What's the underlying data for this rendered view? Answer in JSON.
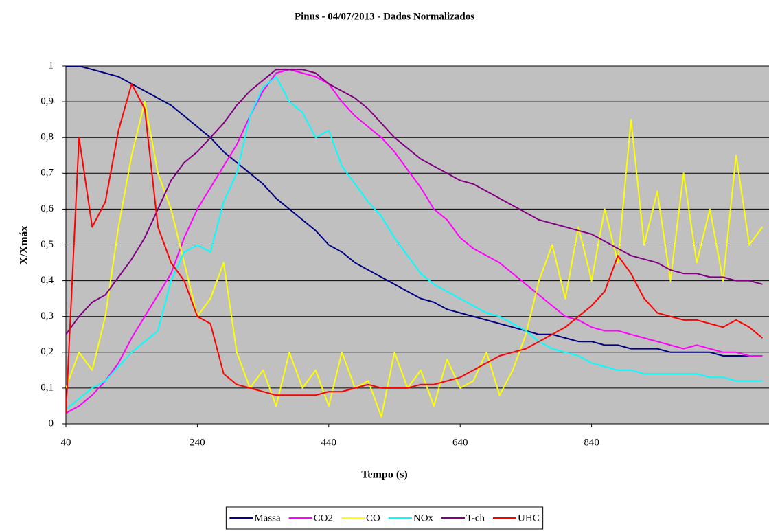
{
  "chart_data": {
    "type": "line",
    "title": "Pinus  -  04/07/2013 - Dados Normalizados",
    "x_label": "Tempo  (s)",
    "y_label": "X/Xmáx",
    "x": [
      40,
      60,
      80,
      100,
      120,
      140,
      160,
      180,
      200,
      220,
      240,
      260,
      280,
      300,
      320,
      340,
      360,
      380,
      400,
      420,
      440,
      460,
      480,
      500,
      520,
      540,
      560,
      580,
      600,
      620,
      640,
      660,
      680,
      700,
      720,
      740,
      760,
      780,
      800,
      820,
      840,
      860,
      880,
      900,
      920,
      940,
      960,
      980,
      1000,
      1020,
      1040,
      1060,
      1080,
      1100
    ],
    "series": [
      {
        "name": "Massa",
        "color": "#000080",
        "values": [
          1,
          1,
          0.99,
          0.98,
          0.97,
          0.95,
          0.93,
          0.91,
          0.89,
          0.86,
          0.83,
          0.8,
          0.76,
          0.73,
          0.7,
          0.67,
          0.63,
          0.6,
          0.57,
          0.54,
          0.5,
          0.48,
          0.45,
          0.43,
          0.41,
          0.39,
          0.37,
          0.35,
          0.34,
          0.32,
          0.31,
          0.3,
          0.29,
          0.28,
          0.27,
          0.26,
          0.25,
          0.25,
          0.24,
          0.23,
          0.23,
          0.22,
          0.22,
          0.21,
          0.21,
          0.21,
          0.2,
          0.2,
          0.2,
          0.2,
          0.19,
          0.19,
          0.19,
          0.19
        ]
      },
      {
        "name": "CO2",
        "color": "#ff00ff",
        "values": [
          0.03,
          0.05,
          0.08,
          0.12,
          0.17,
          0.24,
          0.3,
          0.36,
          0.42,
          0.52,
          0.6,
          0.66,
          0.72,
          0.78,
          0.86,
          0.93,
          0.98,
          0.99,
          0.98,
          0.97,
          0.95,
          0.9,
          0.86,
          0.83,
          0.8,
          0.76,
          0.71,
          0.66,
          0.6,
          0.57,
          0.52,
          0.49,
          0.47,
          0.45,
          0.42,
          0.39,
          0.36,
          0.33,
          0.3,
          0.29,
          0.27,
          0.26,
          0.26,
          0.25,
          0.24,
          0.23,
          0.22,
          0.21,
          0.22,
          0.21,
          0.2,
          0.2,
          0.19,
          0.19
        ]
      },
      {
        "name": "CO",
        "color": "#ffff00",
        "values": [
          0.1,
          0.2,
          0.15,
          0.3,
          0.55,
          0.75,
          0.9,
          0.7,
          0.6,
          0.45,
          0.3,
          0.35,
          0.45,
          0.2,
          0.1,
          0.15,
          0.05,
          0.2,
          0.1,
          0.15,
          0.05,
          0.2,
          0.1,
          0.12,
          0.02,
          0.2,
          0.1,
          0.15,
          0.05,
          0.18,
          0.1,
          0.12,
          0.2,
          0.08,
          0.15,
          0.25,
          0.4,
          0.5,
          0.35,
          0.55,
          0.4,
          0.6,
          0.45,
          0.85,
          0.5,
          0.65,
          0.4,
          0.7,
          0.45,
          0.6,
          0.4,
          0.75,
          0.5,
          0.55
        ]
      },
      {
        "name": "NOx",
        "color": "#00ffff",
        "values": [
          0.04,
          0.07,
          0.1,
          0.12,
          0.16,
          0.2,
          0.23,
          0.26,
          0.4,
          0.48,
          0.5,
          0.48,
          0.62,
          0.7,
          0.86,
          0.94,
          0.97,
          0.9,
          0.87,
          0.8,
          0.82,
          0.72,
          0.67,
          0.62,
          0.58,
          0.52,
          0.47,
          0.42,
          0.39,
          0.37,
          0.35,
          0.33,
          0.31,
          0.3,
          0.28,
          0.26,
          0.23,
          0.21,
          0.2,
          0.19,
          0.17,
          0.16,
          0.15,
          0.15,
          0.14,
          0.14,
          0.14,
          0.14,
          0.14,
          0.13,
          0.13,
          0.12,
          0.12,
          0.12
        ]
      },
      {
        "name": "T-ch",
        "color": "#800080",
        "values": [
          0.25,
          0.3,
          0.34,
          0.36,
          0.41,
          0.46,
          0.52,
          0.6,
          0.68,
          0.73,
          0.76,
          0.8,
          0.84,
          0.89,
          0.93,
          0.96,
          0.99,
          0.99,
          0.99,
          0.98,
          0.95,
          0.93,
          0.91,
          0.88,
          0.84,
          0.8,
          0.77,
          0.74,
          0.72,
          0.7,
          0.68,
          0.67,
          0.65,
          0.63,
          0.61,
          0.59,
          0.57,
          0.56,
          0.55,
          0.54,
          0.53,
          0.51,
          0.49,
          0.47,
          0.46,
          0.45,
          0.43,
          0.42,
          0.42,
          0.41,
          0.41,
          0.4,
          0.4,
          0.39
        ]
      },
      {
        "name": "UHC",
        "color": "#ff0000",
        "values": [
          0.03,
          0.8,
          0.55,
          0.62,
          0.82,
          0.95,
          0.88,
          0.55,
          0.45,
          0.4,
          0.3,
          0.28,
          0.14,
          0.11,
          0.1,
          0.09,
          0.08,
          0.08,
          0.08,
          0.08,
          0.09,
          0.09,
          0.1,
          0.11,
          0.1,
          0.1,
          0.1,
          0.11,
          0.11,
          0.12,
          0.13,
          0.15,
          0.17,
          0.19,
          0.2,
          0.21,
          0.23,
          0.25,
          0.27,
          0.3,
          0.33,
          0.37,
          0.47,
          0.42,
          0.35,
          0.31,
          0.3,
          0.29,
          0.29,
          0.28,
          0.27,
          0.29,
          0.27,
          0.24
        ]
      }
    ],
    "xlim": [
      40,
      1110
    ],
    "xticks": [
      40,
      240,
      440,
      640,
      840
    ],
    "ylim": [
      0,
      1
    ],
    "yticks": [
      0,
      {
        "value": 0.1,
        "label": "0,1"
      },
      {
        "value": 0.2,
        "label": "0,2"
      },
      {
        "value": 0.3,
        "label": "0,3"
      },
      {
        "value": 0.4,
        "label": "0,4"
      },
      {
        "value": 0.5,
        "label": "0,5"
      },
      {
        "value": 0.6,
        "label": "0,6"
      },
      {
        "value": 0.7,
        "label": "0,7"
      },
      {
        "value": 0.8,
        "label": "0,8"
      },
      {
        "value": 0.9,
        "label": "0,9"
      },
      1
    ],
    "grid": true,
    "plot_background": "#c0c0c0",
    "legend": "bottom"
  }
}
